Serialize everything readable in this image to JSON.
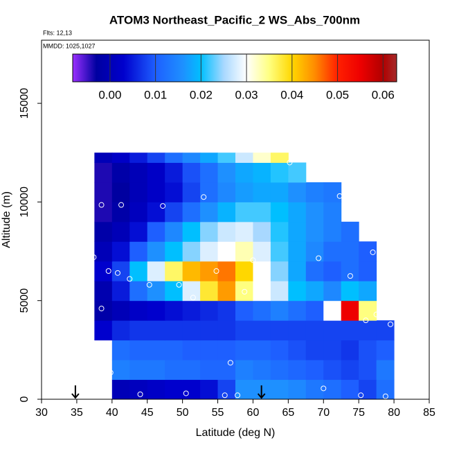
{
  "chart_data": {
    "type": "heatmap",
    "title": "ATOM3 Northeast_Pacific_2 WS_Abs_700nm",
    "notes": [
      "Flts: 12,13",
      "MMDD: 1025,1027"
    ],
    "x_label": "Latitude (deg N)",
    "y_label": "Altitude (m)",
    "xlim": [
      30,
      85
    ],
    "xticks": [
      30,
      35,
      40,
      45,
      50,
      55,
      60,
      65,
      70,
      75,
      80,
      85
    ],
    "ylim": [
      0,
      18200
    ],
    "yticks": [
      0,
      5000,
      10000,
      15000
    ],
    "x_edges": [
      35,
      37.5,
      40,
      42.5,
      45,
      47.5,
      50,
      52.5,
      55,
      57.5,
      60,
      62.5,
      65,
      67.5,
      70,
      72.5,
      75,
      77.5,
      80
    ],
    "y_edges": [
      0,
      1000,
      2000,
      3000,
      4000,
      5000,
      6000,
      7000,
      8000,
      9000,
      10000,
      11000,
      12000,
      12500
    ],
    "z": [
      [
        null,
        null,
        0.0,
        0.001,
        0.002,
        0.003,
        0.003,
        0.004,
        0.008,
        0.016,
        0.016,
        0.016,
        0.015,
        0.013,
        0.012,
        0.01,
        0.008,
        0.012
      ],
      [
        null,
        null,
        0.014,
        0.013,
        0.013,
        0.012,
        0.012,
        0.011,
        0.011,
        0.014,
        0.013,
        0.012,
        0.011,
        0.01,
        0.009,
        0.008,
        0.009,
        0.013
      ],
      [
        null,
        null,
        0.012,
        0.011,
        0.011,
        0.011,
        0.01,
        0.01,
        0.01,
        0.011,
        0.011,
        0.01,
        0.009,
        0.008,
        0.008,
        0.007,
        0.009,
        0.01
      ],
      [
        null,
        0.003,
        0.006,
        0.007,
        0.007,
        0.007,
        0.007,
        0.007,
        0.007,
        0.008,
        0.008,
        0.008,
        0.008,
        0.008,
        0.008,
        0.008,
        0.008,
        0.008
      ],
      [
        null,
        -0.002,
        0.0,
        0.002,
        0.003,
        0.004,
        0.005,
        0.006,
        0.007,
        0.01,
        0.012,
        0.014,
        0.012,
        0.01,
        0.03,
        0.055,
        0.035,
        null
      ],
      [
        null,
        -0.001,
        0.005,
        0.012,
        0.016,
        0.02,
        0.028,
        0.038,
        0.044,
        0.035,
        0.03,
        0.027,
        0.02,
        0.018,
        0.015,
        0.02,
        0.018,
        null
      ],
      [
        null,
        0.003,
        0.008,
        0.02,
        0.028,
        0.036,
        0.042,
        0.044,
        0.046,
        0.04,
        0.03,
        0.024,
        0.018,
        0.012,
        0.01,
        0.012,
        0.01,
        null
      ],
      [
        null,
        0.0,
        0.004,
        0.01,
        0.016,
        0.02,
        0.024,
        0.028,
        0.03,
        0.033,
        0.028,
        0.022,
        0.018,
        0.015,
        0.012,
        0.012,
        0.01,
        null
      ],
      [
        null,
        -0.002,
        0.0,
        0.004,
        0.01,
        0.015,
        0.02,
        0.024,
        0.027,
        0.028,
        0.025,
        0.021,
        0.018,
        0.016,
        0.014,
        0.012,
        null,
        null
      ],
      [
        null,
        -0.004,
        -0.002,
        0.001,
        0.004,
        0.008,
        0.012,
        0.016,
        0.019,
        0.022,
        0.022,
        0.02,
        0.018,
        0.016,
        0.014,
        null,
        null,
        null
      ],
      [
        null,
        -0.004,
        -0.003,
        0.0,
        0.002,
        0.004,
        0.008,
        0.012,
        0.015,
        0.017,
        0.018,
        0.018,
        0.016,
        0.014,
        0.013,
        null,
        null,
        null
      ],
      [
        null,
        -0.004,
        -0.002,
        0.0,
        0.002,
        0.005,
        0.009,
        0.012,
        0.016,
        0.018,
        0.019,
        0.021,
        0.022,
        null,
        null,
        null,
        null,
        null
      ],
      [
        null,
        0.0,
        0.002,
        0.005,
        0.008,
        0.012,
        0.015,
        0.018,
        0.022,
        0.027,
        0.032,
        0.036,
        null,
        null,
        null,
        null,
        null,
        null
      ]
    ],
    "colorbar": {
      "lim": [
        -0.0082,
        0.063
      ],
      "ticks": [
        {
          "value": 0,
          "label": "0.00"
        },
        {
          "value": 0.01,
          "label": "0.01"
        },
        {
          "value": 0.02,
          "label": "0.02"
        },
        {
          "value": 0.03,
          "label": "0.03"
        },
        {
          "value": 0.04,
          "label": "0.04"
        },
        {
          "value": 0.05,
          "label": "0.05"
        },
        {
          "value": 0.06,
          "label": "0.06"
        }
      ],
      "stops": [
        [
          -0.0082,
          "#9b30ff"
        ],
        [
          -0.003,
          "#0000a0"
        ],
        [
          0.003,
          "#0000cd"
        ],
        [
          0.01,
          "#1e5fff"
        ],
        [
          0.016,
          "#1e90ff"
        ],
        [
          0.02,
          "#00bfff"
        ],
        [
          0.025,
          "#a8d8ff"
        ],
        [
          0.03,
          "#ffffff"
        ],
        [
          0.035,
          "#ffff80"
        ],
        [
          0.04,
          "#ffd700"
        ],
        [
          0.045,
          "#ff8c00"
        ],
        [
          0.05,
          "#ff2000"
        ],
        [
          0.055,
          "#ee0000"
        ],
        [
          0.06,
          "#b00000"
        ],
        [
          0.063,
          "#a52a2a"
        ]
      ]
    },
    "points": {
      "x": [
        36,
        39.5,
        44,
        50.5,
        56,
        57.8,
        70,
        75.3,
        78.8,
        39.8,
        56.8,
        79.5,
        76,
        71,
        77.5,
        38.5,
        51.5,
        58.8,
        45.3,
        49.5,
        42.5,
        54.8,
        39.5,
        40.8,
        37.4,
        60,
        69.3,
        73.8,
        77,
        38.5,
        41.3,
        47.2,
        53,
        72.3,
        65.2
      ],
      "y": [
        12400,
        200,
        250,
        300,
        200,
        200,
        550,
        200,
        150,
        1350,
        1850,
        3800,
        4000,
        4300,
        4300,
        4600,
        5150,
        5450,
        5800,
        5800,
        6100,
        6500,
        6500,
        6400,
        7200,
        7050,
        7150,
        6250,
        7450,
        9850,
        9850,
        9800,
        10250,
        10300,
        12000
      ]
    },
    "arrows": [
      34.8,
      61.2
    ]
  }
}
